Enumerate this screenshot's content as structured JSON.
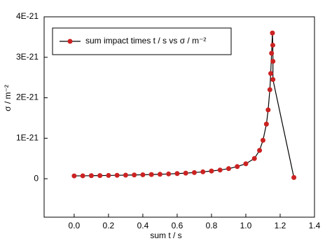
{
  "chart_data": {
    "type": "line",
    "x_label": "sum t  / s",
    "y_label": "σ  / m⁻²",
    "x": [
      0,
      0.05,
      0.1,
      0.15,
      0.2,
      0.25,
      0.3,
      0.35,
      0.4,
      0.45,
      0.5,
      0.55,
      0.6,
      0.65,
      0.7,
      0.75,
      0.8,
      0.85,
      0.9,
      0.95,
      1.0,
      1.05,
      1.08,
      1.1,
      1.12,
      1.13,
      1.14,
      1.145,
      1.15,
      1.155,
      1.157,
      1.158,
      1.158,
      1.28
    ],
    "series": [
      {
        "name": "sum impact times t  / s vs σ / m⁻²",
        "color": "#cc2222",
        "line_color": "#000000",
        "values": [
          7e-23,
          7.2e-23,
          7.5e-23,
          7.8e-23,
          8.1e-23,
          8.5e-23,
          8.9e-23,
          9.3e-23,
          9.8e-23,
          1.03e-22,
          1.1e-22,
          1.18e-22,
          1.27e-22,
          1.38e-22,
          1.52e-22,
          1.7e-22,
          1.9e-22,
          2.15e-22,
          2.5e-22,
          3e-22,
          3.7e-22,
          5e-22,
          7e-22,
          9.5e-22,
          1.35e-21,
          1.7e-21,
          2.2e-21,
          2.6e-21,
          3.1e-21,
          3.6e-21,
          3.3e-21,
          2.9e-21,
          2.45e-21,
          3e-23
        ]
      }
    ],
    "xlim": [
      -0.175,
      1.4
    ],
    "xticks": [
      {
        "value": 0,
        "label": "0.0"
      },
      0.2,
      0.4,
      0.6,
      0.8,
      {
        "value": 1,
        "label": "1.0"
      },
      1.2,
      1.4
    ],
    "ylim": [
      -9.5e-22,
      4e-21
    ],
    "yticks": [
      0,
      {
        "value": 1e-21,
        "label": "1E-21"
      },
      {
        "value": 2e-21,
        "label": "2E-21"
      },
      {
        "value": 3e-21,
        "label": "3E-21"
      },
      {
        "value": 4e-21,
        "label": "4E-21"
      }
    ],
    "legend": "upper-left"
  }
}
